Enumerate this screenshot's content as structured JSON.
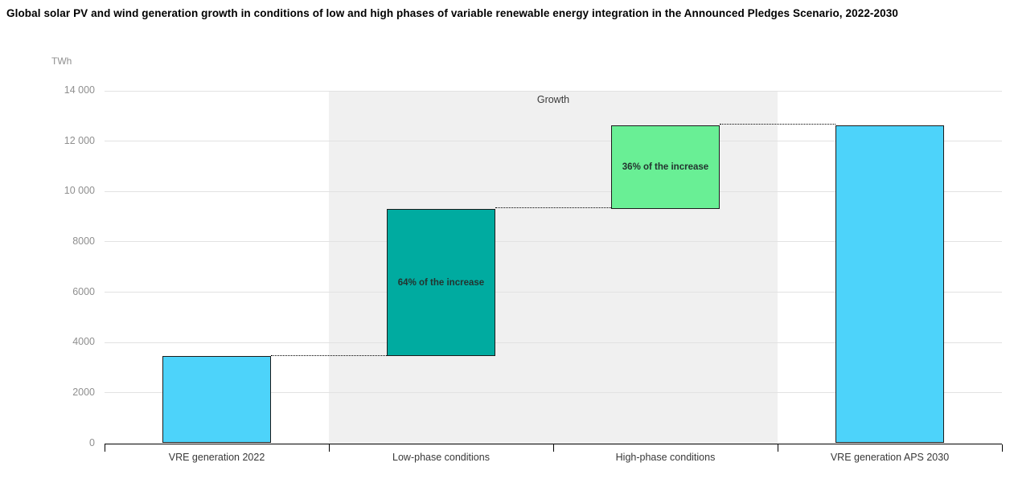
{
  "chart_data": {
    "type": "bar",
    "subtype": "waterfall",
    "title": "Global solar PV and wind generation growth in conditions of low and high phases of variable renewable energy integration in the Announced Pledges Scenario, 2022-2030",
    "unit": "TWh",
    "ylim": [
      0,
      14000
    ],
    "ytick_step": 2000,
    "yticks": [
      "0",
      "2000",
      "4000",
      "6000",
      "8000",
      "10 000",
      "12 000",
      "14 000"
    ],
    "grid": true,
    "categories": [
      "VRE generation 2022",
      "Low-phase conditions",
      "High-phase conditions",
      "VRE generation APS 2030"
    ],
    "bars": [
      {
        "category": "VRE generation 2022",
        "base": 0,
        "top": 3450,
        "color": "#4DD3FA",
        "label": ""
      },
      {
        "category": "Low-phase conditions",
        "base": 3450,
        "top": 9320,
        "color": "#00ABA0",
        "label": "64% of the increase"
      },
      {
        "category": "High-phase conditions",
        "base": 9320,
        "top": 12640,
        "color": "#69EF95",
        "label": "36% of the increase"
      },
      {
        "category": "VRE generation APS 2030",
        "base": 0,
        "top": 12640,
        "color": "#4DD3FA",
        "label": ""
      }
    ],
    "connectors": [
      {
        "value": 3450,
        "from_bar": 0,
        "to_bar": 1
      },
      {
        "value": 9320,
        "from_bar": 1,
        "to_bar": 2
      },
      {
        "value": 12640,
        "from_bar": 2,
        "to_bar": 3
      }
    ],
    "growth_band": {
      "label": "Growth",
      "from_category": 1,
      "to_category": 2,
      "color": "#F0F0F0"
    },
    "colors": {
      "vre_blue": "#4DD3FA",
      "low_phase_teal": "#00ABA0",
      "high_phase_green": "#69EF95",
      "band_gray": "#F0F0F0",
      "gridline_gray": "#E2E2E2",
      "bar_border": "#1C1C1C",
      "axis_black": "#000000",
      "tick_text_gray": "#8F8F8F"
    }
  }
}
